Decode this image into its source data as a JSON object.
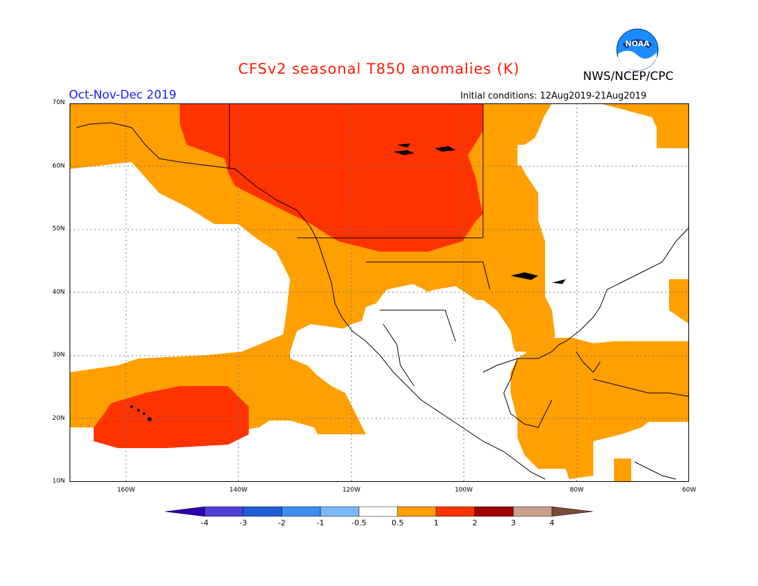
{
  "title": "CFSv2 seasonal T850 anomalies (K)",
  "agency": "NWS/NCEP/CPC",
  "logo_text": "NOAA",
  "season": "Oct-Nov-Dec 2019",
  "initial_conditions": "Initial conditions: 12Aug2019-21Aug2019",
  "map": {
    "lat_labels": [
      "70N",
      "60N",
      "50N",
      "40N",
      "30N",
      "20N",
      "10N"
    ],
    "lon_labels": [
      "160W",
      "140W",
      "120W",
      "100W",
      "80W",
      "60W"
    ],
    "anomaly_regions": [
      {
        "level": "0.5 to 1",
        "color": "#ff9f00"
      },
      {
        "level": "1 to 2",
        "color": "#ff3300"
      }
    ]
  },
  "colorbar": {
    "labels": [
      "-4",
      "-3",
      "-2",
      "-1",
      "-0.5",
      "0.5",
      "1",
      "2",
      "3",
      "4"
    ],
    "colors": [
      "#2a00b0",
      "#4e3fd6",
      "#1f5fd6",
      "#3b8ef0",
      "#7ab8f5",
      "#ffffff",
      "#ff9f00",
      "#ff3300",
      "#a00000",
      "#c8a08c",
      "#7a4a3a"
    ]
  }
}
